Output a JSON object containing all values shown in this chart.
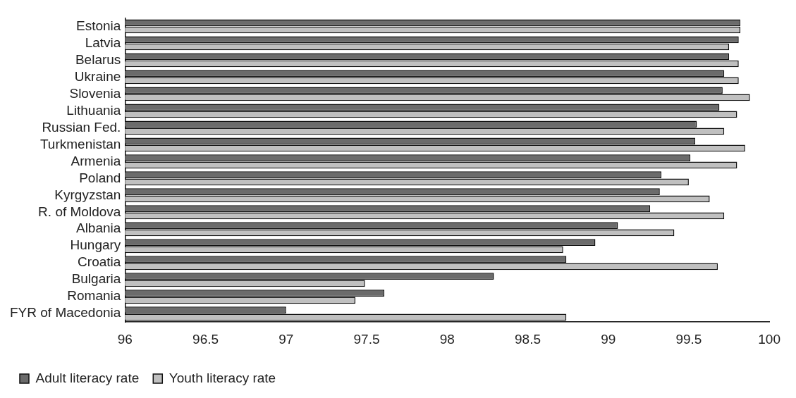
{
  "chart_data": {
    "type": "bar",
    "orientation": "horizontal",
    "categories": [
      "Estonia",
      "Latvia",
      "Belarus",
      "Ukraine",
      "Slovenia",
      "Lithuania",
      "Russian Fed.",
      "Turkmenistan",
      "Armenia",
      "Poland",
      "Kyrgyzstan",
      "R. of Moldova",
      "Albania",
      "Hungary",
      "Croatia",
      "Bulgaria",
      "Romania",
      "FYR of Macedonia"
    ],
    "series": [
      {
        "name": "Adult literacy rate",
        "color": "#6b6b6b",
        "values": [
          99.82,
          99.81,
          99.75,
          99.72,
          99.71,
          99.69,
          99.55,
          99.54,
          99.51,
          99.33,
          99.32,
          99.26,
          99.06,
          98.92,
          98.74,
          98.29,
          97.61,
          97.0
        ]
      },
      {
        "name": "Youth literacy rate",
        "color": "#c0c0c0",
        "values": [
          99.82,
          99.75,
          99.81,
          99.81,
          99.88,
          99.8,
          99.72,
          99.85,
          99.8,
          99.5,
          99.63,
          99.72,
          99.41,
          98.72,
          99.68,
          97.49,
          97.43,
          98.74
        ]
      }
    ],
    "xlim": [
      96,
      100
    ],
    "xticks": [
      96,
      96.5,
      97,
      97.5,
      98,
      98.5,
      99,
      99.5,
      100
    ],
    "grid": false,
    "legend": "bottom left"
  }
}
